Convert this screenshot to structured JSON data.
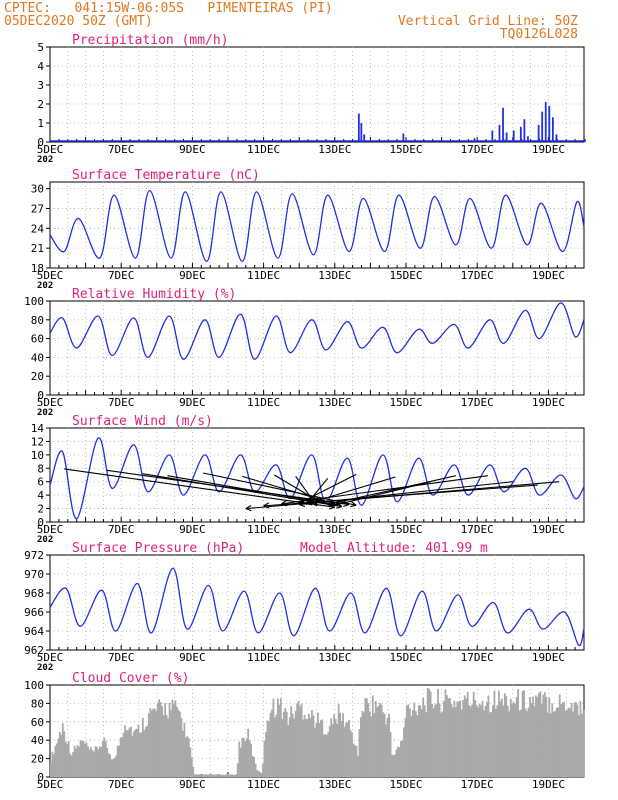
{
  "header": {
    "line1_left": "CPTEC:   041:15W-06:05S   PIMENTEIRAS (PI)",
    "line2_left": "05DEC2020 50Z (GMT)",
    "line2_right": "Vertical Grid Line: 50Z",
    "line3_right": "TQ0126L028",
    "header_color": "#e07820"
  },
  "colors": {
    "title": "#e0207a",
    "line": "#2030e0",
    "cloud": "#a9a9a9",
    "wind_arrow": "#000000"
  },
  "x_axis": {
    "ticks": [
      "5DEC",
      "7DEC",
      "9DEC",
      "11DEC",
      "13DEC",
      "15DEC",
      "17DEC",
      "19DEC"
    ],
    "tick_days": [
      0,
      2,
      4,
      6,
      8,
      10,
      12,
      14
    ],
    "days": 15,
    "fragment": "202"
  },
  "chart_data": [
    {
      "id": "precip",
      "type": "bar",
      "title": "Precipitation (mm/h)",
      "ylim": [
        0,
        5
      ],
      "yticks": [
        0,
        1,
        2,
        3,
        4,
        5
      ],
      "events": [
        [
          8.65,
          1.5
        ],
        [
          8.72,
          1.0
        ],
        [
          8.8,
          0.4
        ],
        [
          9.9,
          0.45
        ],
        [
          11.9,
          0.2
        ],
        [
          12.4,
          0.6
        ],
        [
          12.6,
          0.9
        ],
        [
          12.7,
          1.8
        ],
        [
          12.8,
          0.5
        ],
        [
          13.0,
          0.6
        ],
        [
          13.2,
          0.8
        ],
        [
          13.3,
          1.2
        ],
        [
          13.4,
          0.3
        ],
        [
          13.7,
          0.9
        ],
        [
          13.8,
          1.6
        ],
        [
          13.9,
          2.1
        ],
        [
          14.0,
          1.9
        ],
        [
          14.1,
          1.3
        ],
        [
          14.2,
          0.4
        ],
        [
          15.0,
          0.15
        ]
      ]
    },
    {
      "id": "temp",
      "type": "line",
      "title": "Surface Temperature (nC)",
      "ylim": [
        18,
        31
      ],
      "yticks": [
        18,
        21,
        24,
        27,
        30
      ],
      "min": [
        20.5,
        19.5,
        19.5,
        19.5,
        19.0,
        19.0,
        19.5,
        20.0,
        20.5,
        20.5,
        21.0,
        21.5,
        21.0,
        21.5,
        20.5
      ],
      "max": [
        25.5,
        29.0,
        29.7,
        29.5,
        29.5,
        29.5,
        29.2,
        29.0,
        28.5,
        29.0,
        28.8,
        28.5,
        29.0,
        27.8,
        28.0
      ]
    },
    {
      "id": "rh",
      "type": "line",
      "title": "Relative Humidity (%)",
      "ylim": [
        0,
        100
      ],
      "yticks": [
        0,
        20,
        40,
        60,
        80,
        100
      ],
      "max": [
        82,
        84,
        82,
        84,
        80,
        86,
        84,
        80,
        78,
        72,
        70,
        75,
        80,
        90,
        98
      ],
      "min": [
        50,
        42,
        40,
        38,
        40,
        38,
        45,
        48,
        50,
        45,
        55,
        50,
        55,
        60,
        62
      ]
    },
    {
      "id": "wind",
      "type": "line",
      "title": "Surface Wind (m/s)",
      "ylim": [
        0,
        14
      ],
      "yticks": [
        0,
        2,
        4,
        6,
        8,
        10,
        12,
        14
      ],
      "max": [
        10.5,
        12.5,
        11.5,
        10.0,
        10.0,
        10.0,
        8.5,
        10.0,
        9.5,
        10.0,
        9.5,
        8.5,
        8.5,
        8.0,
        7.0
      ],
      "min": [
        0.5,
        5.0,
        4.5,
        4.0,
        4.5,
        4.5,
        3.5,
        3.0,
        2.5,
        3.0,
        4.0,
        4.0,
        4.5,
        4.0,
        3.5
      ],
      "arrows": [
        [
          0.4,
          7.9,
          8.0,
          2.2
        ],
        [
          1.6,
          7.7,
          8.4,
          2.6
        ],
        [
          2.6,
          7.2,
          8.2,
          2.3
        ],
        [
          3.3,
          6.9,
          8.0,
          2.6
        ],
        [
          4.3,
          7.3,
          8.6,
          2.5
        ],
        [
          5.4,
          6.8,
          8.0,
          2.7
        ],
        [
          6.3,
          7.0,
          7.6,
          2.9
        ],
        [
          6.9,
          6.8,
          7.5,
          2.4
        ],
        [
          7.8,
          6.5,
          7.2,
          2.6
        ],
        [
          8.6,
          7.1,
          7.0,
          2.8
        ],
        [
          9.7,
          6.7,
          7.2,
          2.7
        ],
        [
          10.7,
          6.0,
          8.0,
          2.5
        ],
        [
          11.4,
          6.9,
          7.8,
          2.6
        ],
        [
          12.3,
          6.9,
          6.5,
          2.7
        ],
        [
          13.0,
          6.0,
          7.0,
          2.6
        ],
        [
          13.7,
          5.5,
          6.0,
          2.4
        ],
        [
          14.3,
          6.0,
          5.5,
          2.0
        ]
      ]
    },
    {
      "id": "pres",
      "type": "line",
      "title": "Surface Pressure (hPa)",
      "annotation": "Model Altitude: 401.99 m",
      "ylim": [
        962,
        972
      ],
      "yticks": [
        962,
        964,
        966,
        968,
        970,
        972
      ],
      "max": [
        968.5,
        968.3,
        969.0,
        970.6,
        968.8,
        968.2,
        968.0,
        968.5,
        968.0,
        968.5,
        968.2,
        967.8,
        967.0,
        966.3,
        966.0
      ],
      "min": [
        964.5,
        964.0,
        963.8,
        964.2,
        964.0,
        963.8,
        963.5,
        964.0,
        963.8,
        963.5,
        964.0,
        964.5,
        963.8,
        964.2,
        962.5
      ]
    },
    {
      "id": "cloud",
      "type": "area",
      "title": "Cloud Cover (%)",
      "ylim": [
        0,
        100
      ],
      "yticks": [
        0,
        20,
        40,
        60,
        80,
        100
      ],
      "profile": [
        [
          0,
          20
        ],
        [
          0.35,
          65
        ],
        [
          0.6,
          30
        ],
        [
          0.9,
          45
        ],
        [
          1.2,
          30
        ],
        [
          1.5,
          45
        ],
        [
          1.8,
          20
        ],
        [
          2.1,
          70
        ],
        [
          2.4,
          55
        ],
        [
          2.8,
          80
        ],
        [
          3.2,
          88
        ],
        [
          3.6,
          85
        ],
        [
          3.9,
          45
        ],
        [
          4.05,
          3
        ],
        [
          5.25,
          3
        ],
        [
          5.3,
          40
        ],
        [
          5.55,
          55
        ],
        [
          5.8,
          10
        ],
        [
          5.95,
          5
        ],
        [
          6.1,
          80
        ],
        [
          6.4,
          93
        ],
        [
          6.7,
          75
        ],
        [
          7.0,
          90
        ],
        [
          7.4,
          75
        ],
        [
          7.8,
          60
        ],
        [
          8.1,
          80
        ],
        [
          8.4,
          65
        ],
        [
          8.65,
          30
        ],
        [
          8.75,
          90
        ],
        [
          9.2,
          92
        ],
        [
          9.55,
          70
        ],
        [
          9.6,
          25
        ],
        [
          9.9,
          45
        ],
        [
          10.0,
          85
        ],
        [
          10.6,
          97
        ],
        [
          11.5,
          95
        ],
        [
          12.2,
          97
        ],
        [
          13.0,
          97
        ],
        [
          13.8,
          96
        ],
        [
          14.5,
          93
        ],
        [
          15.0,
          88
        ]
      ]
    }
  ]
}
